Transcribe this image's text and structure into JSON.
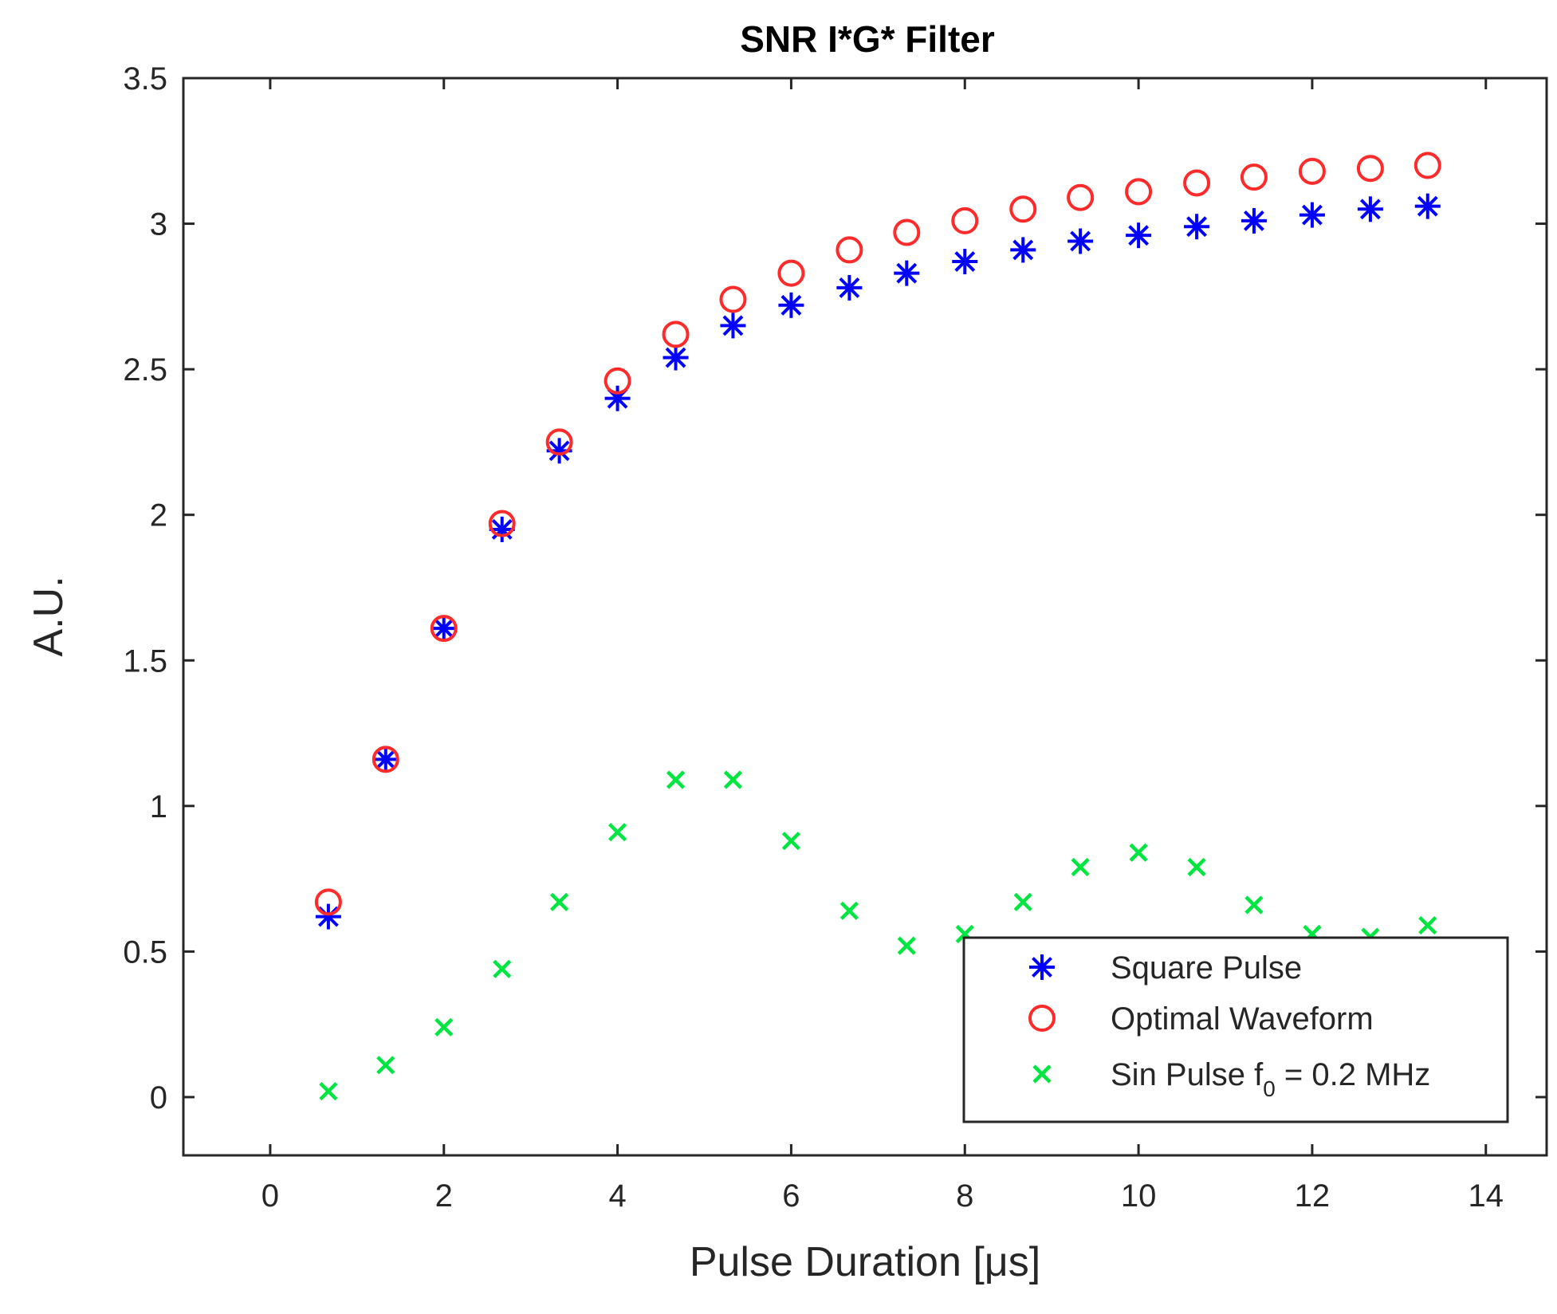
{
  "chart_data": {
    "type": "scatter",
    "title": "SNR I*G* Filter",
    "xlabel": "Pulse Duration [μs]",
    "ylabel": "A.U.",
    "xlim": [
      -1,
      14.7
    ],
    "ylim": [
      -0.2,
      3.5
    ],
    "x_ticks": [
      0,
      2,
      4,
      6,
      8,
      10,
      12,
      14
    ],
    "x_tick_labels": [
      "0",
      "2",
      "4",
      "6",
      "8",
      "10",
      "12",
      "14"
    ],
    "y_ticks": [
      0,
      0.5,
      1,
      1.5,
      2,
      2.5,
      3,
      3.5
    ],
    "y_tick_labels": [
      "0",
      "0.5",
      "1",
      "1.5",
      "2",
      "2.5",
      "3",
      "3.5"
    ],
    "grid": false,
    "legend_position": "bottom-right",
    "x": [
      0.67,
      1.33,
      2.0,
      2.67,
      3.33,
      4.0,
      4.67,
      5.33,
      6.0,
      6.67,
      7.33,
      8.0,
      8.67,
      9.33,
      10.0,
      10.67,
      11.33,
      12.0,
      12.67,
      13.33
    ],
    "series": [
      {
        "name": "Square Pulse",
        "marker": "star",
        "color": "#0000ff",
        "values": [
          0.62,
          1.16,
          1.61,
          1.95,
          2.22,
          2.4,
          2.54,
          2.65,
          2.72,
          2.78,
          2.83,
          2.87,
          2.91,
          2.94,
          2.96,
          2.99,
          3.01,
          3.03,
          3.05,
          3.06
        ]
      },
      {
        "name": "Optimal Waveform",
        "marker": "circle",
        "color": "#ff2a2a",
        "values": [
          0.67,
          1.16,
          1.61,
          1.97,
          2.25,
          2.46,
          2.62,
          2.74,
          2.83,
          2.91,
          2.97,
          3.01,
          3.05,
          3.09,
          3.11,
          3.14,
          3.16,
          3.18,
          3.19,
          3.2
        ]
      },
      {
        "name": "Sin Pulse f",
        "name_subscript": "0",
        "name_suffix": " = 0.2 MHz",
        "marker": "x",
        "color": "#00e640",
        "values": [
          0.02,
          0.11,
          0.24,
          0.44,
          0.67,
          0.91,
          1.09,
          1.09,
          0.88,
          0.64,
          0.52,
          0.56,
          0.67,
          0.79,
          0.84,
          0.79,
          0.66,
          0.56,
          0.55,
          0.59
        ]
      }
    ]
  }
}
